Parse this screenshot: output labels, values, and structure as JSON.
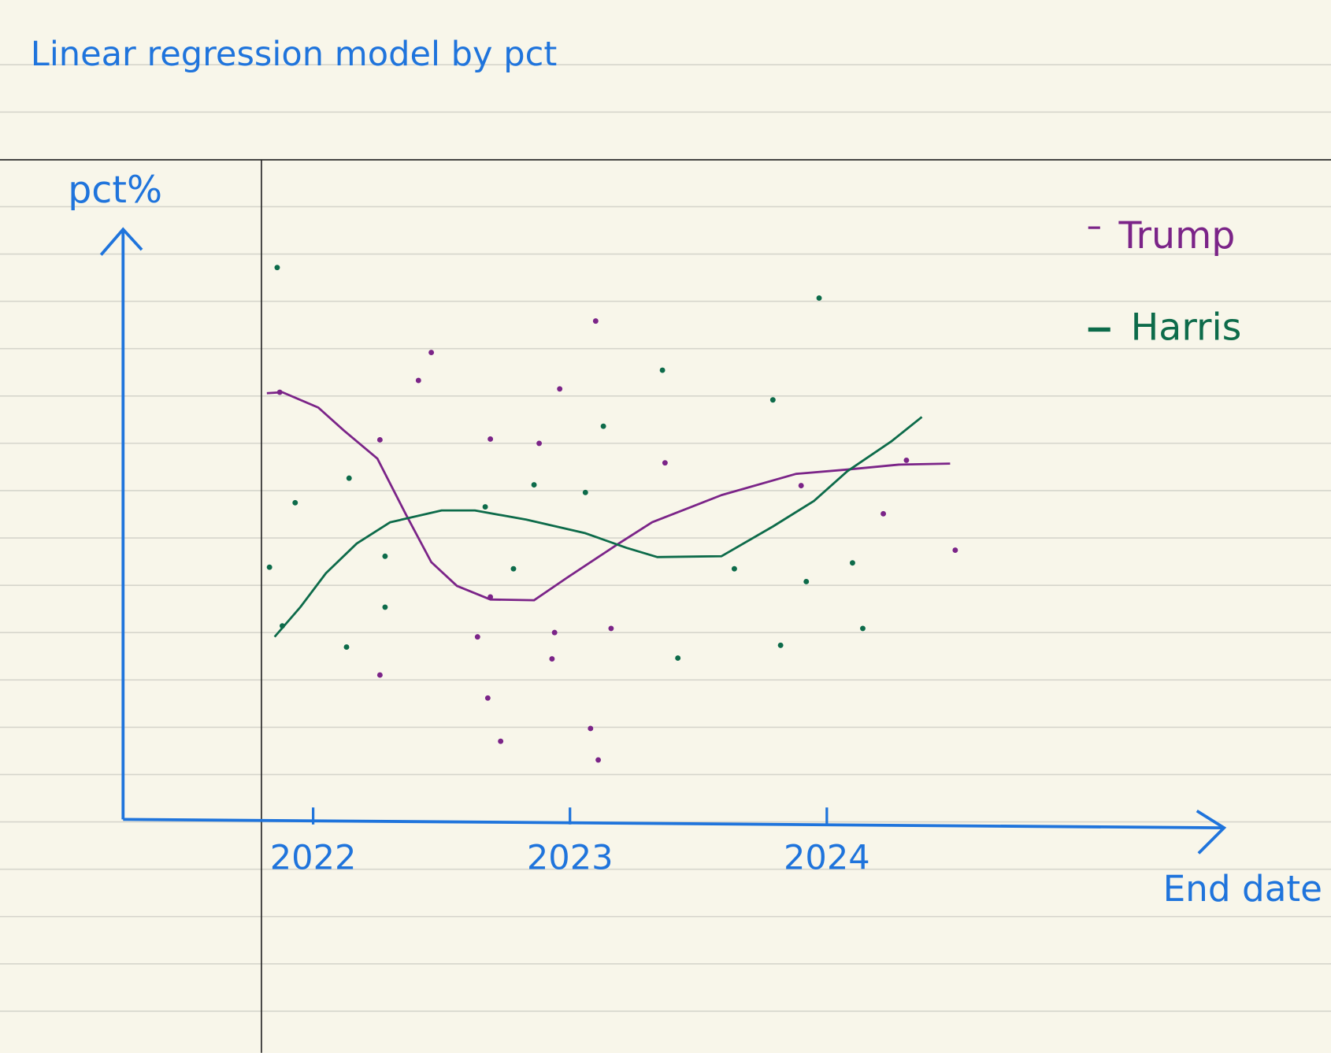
{
  "chart_data": {
    "type": "line",
    "title": "Linear regression model by pct",
    "y_label": "pct%",
    "x_label": "End date",
    "xlim": [
      2021.26,
      2025.54
    ],
    "xticks": [
      2022,
      2023,
      2024
    ],
    "ylim": [
      30,
      60
    ],
    "legend": "top-right",
    "axis_color": "#1f74dc",
    "series": [
      {
        "name": "Trump",
        "color": "#7b2488",
        "x": [
          2021.82,
          2021.88,
          2022.02,
          2022.12,
          2022.25,
          2022.36,
          2022.46,
          2022.56,
          2022.69,
          2022.86,
          2022.99,
          2023.19,
          2023.32,
          2023.59,
          2023.88,
          2024.08,
          2024.28,
          2024.48
        ],
        "values": [
          51.67,
          51.72,
          50.94,
          49.77,
          48.35,
          45.54,
          43.08,
          41.87,
          41.18,
          41.14,
          42.3,
          44.03,
          45.11,
          46.49,
          47.57,
          47.79,
          48.04,
          48.09
        ],
        "points_x": [
          2021.87,
          2022.26,
          2022.69,
          2022.88,
          2022.96,
          2022.41,
          2022.46,
          2023.37,
          2023.9,
          2024.31,
          2024.5,
          2024.22,
          2022.69,
          2022.26,
          2022.68,
          2022.73,
          2023.08,
          2023.11,
          2022.94,
          2022.64,
          2022.93,
          2023.16,
          2023.1
        ],
        "points_y": [
          51.72,
          49.3,
          49.34,
          49.12,
          51.89,
          52.32,
          53.74,
          48.13,
          46.97,
          48.26,
          43.69,
          45.54,
          41.31,
          37.34,
          36.17,
          33.97,
          34.62,
          33.02,
          39.5,
          39.28,
          38.16,
          39.71,
          55.34
        ]
      },
      {
        "name": "Harris",
        "color": "#0d6b4a",
        "x": [
          2021.85,
          2021.95,
          2022.05,
          2022.17,
          2022.3,
          2022.5,
          2022.63,
          2022.83,
          2023.06,
          2023.22,
          2023.34,
          2023.59,
          2023.79,
          2023.95,
          2024.08,
          2024.25,
          2024.37
        ],
        "values": [
          39.28,
          40.79,
          42.52,
          44.03,
          45.11,
          45.71,
          45.71,
          45.24,
          44.55,
          43.81,
          43.34,
          43.38,
          44.89,
          46.19,
          47.7,
          49.21,
          50.46
        ],
        "points_x": [
          2021.86,
          2023.97,
          2023.36,
          2023.79,
          2023.13,
          2023.06,
          2022.86,
          2022.67,
          2022.14,
          2021.93,
          2022.28,
          2022.78,
          2021.83,
          2021.88,
          2022.13,
          2022.28,
          2023.42,
          2023.64,
          2023.92,
          2024.1,
          2023.82,
          2024.14
        ],
        "points_y": [
          58.06,
          56.51,
          52.84,
          51.33,
          49.99,
          46.62,
          47.01,
          45.89,
          47.35,
          46.1,
          43.38,
          42.74,
          42.82,
          39.84,
          38.76,
          40.79,
          38.2,
          42.74,
          42.09,
          43.04,
          38.85,
          39.71
        ]
      }
    ]
  }
}
